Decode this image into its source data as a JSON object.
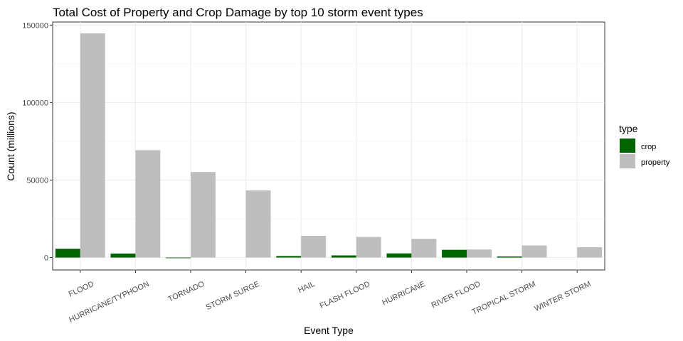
{
  "chart_data": {
    "type": "bar",
    "title": "Total Cost of Property and Crop Damage by top 10 storm event types",
    "xlabel": "Event Type",
    "ylabel": "Count (millions)",
    "categories": [
      "FLOOD",
      "HURRICANE/TYPHOON",
      "TORNADO",
      "STORM SURGE",
      "HAIL",
      "FLASH FLOOD",
      "HURRICANE",
      "RIVER FLOOD",
      "TROPICAL STORM",
      "WINTER STORM"
    ],
    "series": [
      {
        "name": "crop",
        "color": "#006400",
        "values": [
          5700,
          2600,
          -400,
          0,
          1000,
          1400,
          2700,
          5000,
          700,
          0
        ]
      },
      {
        "name": "property",
        "color": "#bebebe",
        "values": [
          144700,
          69300,
          55200,
          43300,
          14000,
          13300,
          12100,
          5200,
          7800,
          6700
        ]
      }
    ],
    "ylim": [
      -8000,
      152000
    ],
    "yticks": [
      0,
      50000,
      100000,
      150000
    ],
    "grid": true,
    "legend": {
      "title": "type",
      "position": "right"
    }
  }
}
